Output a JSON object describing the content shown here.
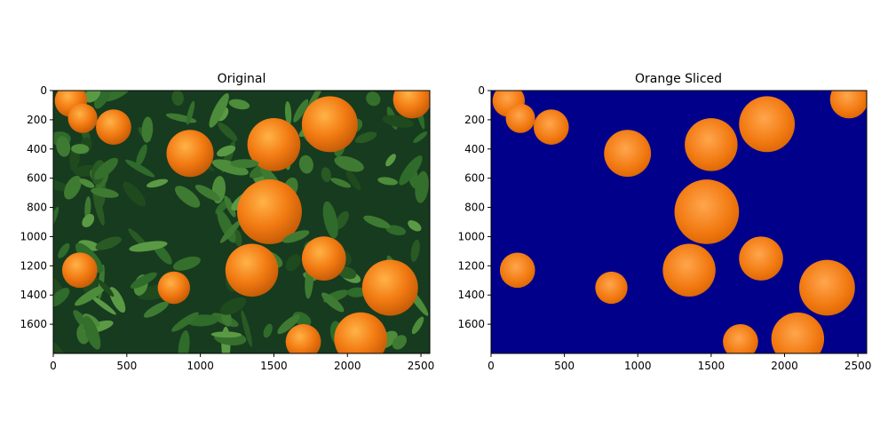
{
  "figure": {
    "panels": [
      {
        "title": "Original",
        "xlim": [
          0,
          2560
        ],
        "ylim": [
          1800,
          0
        ],
        "x_ticks": [
          0,
          500,
          1000,
          1500,
          2000,
          2500
        ],
        "y_ticks": [
          0,
          200,
          400,
          600,
          800,
          1000,
          1200,
          1400,
          1600
        ],
        "background_color": "#173b1f",
        "orange_color": "#f27a12",
        "leaf_color": "#3f7a32"
      },
      {
        "title": "Orange Sliced",
        "xlim": [
          0,
          2560
        ],
        "ylim": [
          1800,
          0
        ],
        "x_ticks": [
          0,
          500,
          1000,
          1500,
          2000,
          2500
        ],
        "y_ticks": [
          0,
          200,
          400,
          600,
          800,
          1000,
          1200,
          1400,
          1600
        ],
        "background_color": "#00008b",
        "orange_color": "#f27a12"
      }
    ]
  },
  "oranges": [
    {
      "cx": 120,
      "cy": 70,
      "r": 110
    },
    {
      "cx": 200,
      "cy": 190,
      "r": 100
    },
    {
      "cx": 410,
      "cy": 250,
      "r": 120
    },
    {
      "cx": 930,
      "cy": 430,
      "r": 160
    },
    {
      "cx": 1500,
      "cy": 370,
      "r": 180
    },
    {
      "cx": 1880,
      "cy": 230,
      "r": 190
    },
    {
      "cx": 2440,
      "cy": 60,
      "r": 130
    },
    {
      "cx": 1470,
      "cy": 830,
      "r": 220
    },
    {
      "cx": 180,
      "cy": 1230,
      "r": 120
    },
    {
      "cx": 820,
      "cy": 1350,
      "r": 110
    },
    {
      "cx": 1350,
      "cy": 1230,
      "r": 180
    },
    {
      "cx": 1840,
      "cy": 1150,
      "r": 150
    },
    {
      "cx": 2290,
      "cy": 1350,
      "r": 190
    },
    {
      "cx": 2090,
      "cy": 1700,
      "r": 180
    },
    {
      "cx": 1700,
      "cy": 1720,
      "r": 120
    }
  ]
}
